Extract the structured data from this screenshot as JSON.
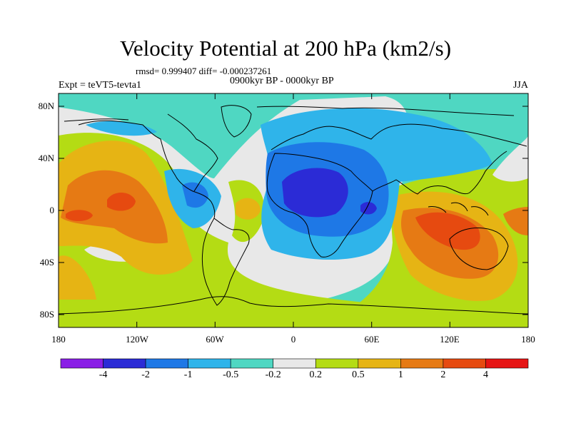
{
  "title": "Velocity Potential at 200 hPa (km2/s)",
  "stats_line": "rmsd= 0.999407 diff= -0.000237261",
  "experiment": "Expt = teVT5-tevta1",
  "period": "0900kyr BP - 0000kyr BP",
  "season": "JJA",
  "lat_ticks": [
    "80N",
    "40N",
    "0",
    "40S",
    "80S"
  ],
  "lon_ticks": [
    "180",
    "120W",
    "60W",
    "0",
    "60E",
    "120E",
    "180"
  ],
  "colorbar": {
    "labels": [
      "-4",
      "-2",
      "-1",
      "-0.5",
      "-0.2",
      "0.2",
      "0.5",
      "1",
      "2",
      "4"
    ],
    "colors": [
      "#8a1ee6",
      "#2b2bd6",
      "#1e78e6",
      "#2fb4ea",
      "#4fd7c2",
      "#e8e8e8",
      "#b4dc14",
      "#e6b414",
      "#e67a14",
      "#e64a10",
      "#e61414"
    ]
  },
  "colors": {
    "background": "#4fd7c2",
    "white_band": "#e8e8e8",
    "lime": "#b4dc14",
    "light_blue": "#2fb4ea",
    "mid_blue": "#1e78e6",
    "dark_blue": "#2b2bd6",
    "yellow": "#e6b414",
    "orange": "#e67a14",
    "red_orange": "#e64a10"
  }
}
